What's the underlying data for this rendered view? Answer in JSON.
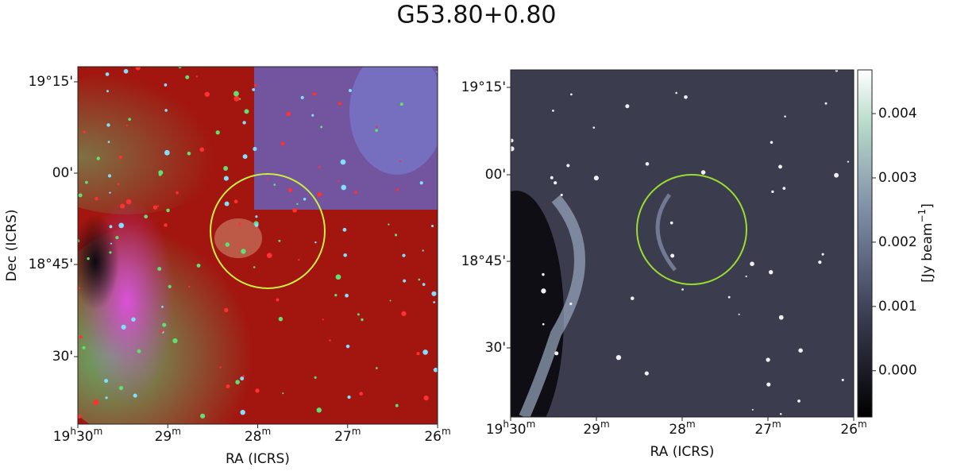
{
  "title": "G53.80+0.80",
  "left_panel": {
    "x_label": "RA (ICRS)",
    "y_label": "Dec (ICRS)",
    "x_ticks": [
      [
        "19",
        "h",
        "30",
        "m"
      ],
      [
        "29",
        "m"
      ],
      [
        "28",
        "m"
      ],
      [
        "27",
        "m"
      ],
      [
        "26",
        "m"
      ]
    ],
    "y_ticks": [
      "19°15'",
      "00'",
      "18°45'",
      "30'"
    ]
  },
  "right_panel": {
    "x_label": "RA (ICRS)",
    "x_ticks": [
      [
        "19",
        "h",
        "30",
        "m"
      ],
      [
        "29",
        "m"
      ],
      [
        "28",
        "m"
      ],
      [
        "27",
        "m"
      ],
      [
        "26",
        "m"
      ]
    ],
    "y_ticks": [
      "19°15'",
      "00'",
      "18°45'",
      "30'"
    ]
  },
  "colorbar": {
    "label": [
      "[Jy beam",
      "−1",
      "]"
    ],
    "range": [
      -0.00072,
      0.00468
    ],
    "ticks": [
      {
        "value": 0,
        "label": "0.000"
      },
      0.001,
      0.002,
      0.003,
      0.004
    ]
  }
}
